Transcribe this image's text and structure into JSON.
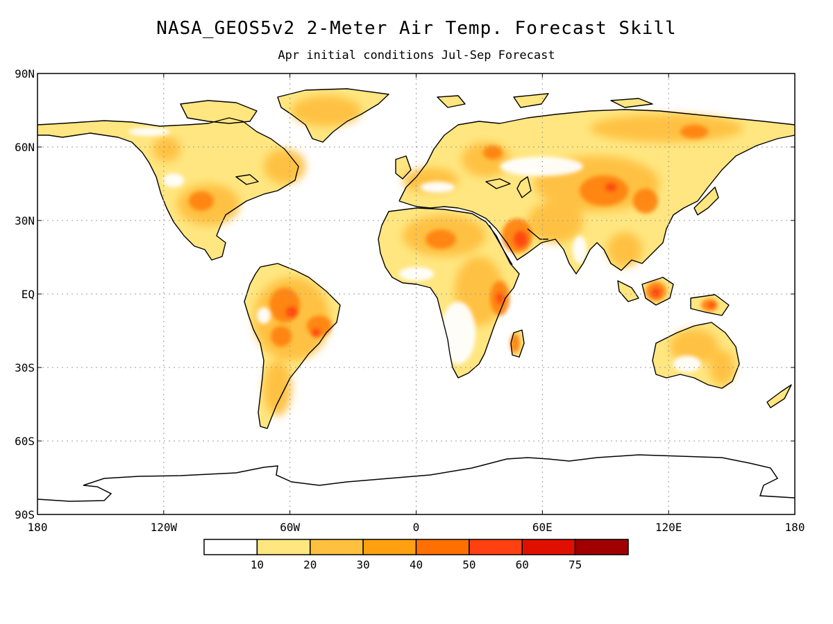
{
  "title": "NASA_GEOS5v2 2-Meter Air Temp. Forecast Skill",
  "subtitle": "Apr initial conditions  Jul-Sep Forecast",
  "map": {
    "lat_ticks": [
      "90N",
      "60N",
      "30N",
      "EQ",
      "30S",
      "60S",
      "90S"
    ],
    "lon_ticks": [
      "180",
      "120W",
      "60W",
      "0",
      "60E",
      "120E",
      "180"
    ],
    "grid": "dotted",
    "land_outline_color": "#000000"
  },
  "colorbar": {
    "labels": [
      "10",
      "20",
      "30",
      "40",
      "50",
      "60",
      "75"
    ],
    "colors": [
      "#ffffff",
      "#ffe680",
      "#ffc040",
      "#ffa010",
      "#ff7000",
      "#ff4010",
      "#e01000",
      "#a00000"
    ]
  }
}
